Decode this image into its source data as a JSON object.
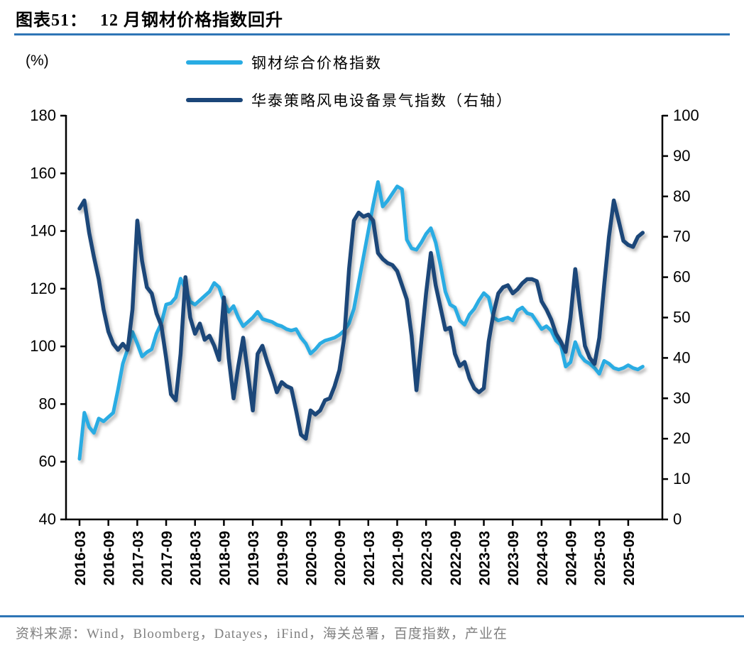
{
  "title": {
    "prefix": "图表51：",
    "text": "12 月钢材价格指数回升"
  },
  "unit_label": "(%)",
  "accent_line_color": "#2E75B6",
  "source": {
    "text": "资料来源：Wind，Bloomberg，Datayes，iFind，海关总署，百度指数，产业在",
    "color": "#808080"
  },
  "legend": {
    "position": "top",
    "items": [
      {
        "label": "钢材综合价格指数",
        "color": "#29ACE3"
      },
      {
        "label": "华泰策略风电设备景气指数（右轴）",
        "color": "#1B4679"
      }
    ]
  },
  "chart_data": {
    "type": "line",
    "title": "12 月钢材价格指数回升",
    "x_start": "2016-03",
    "x_frequency": "monthly",
    "x_tick_labels": [
      "2016-03",
      "2016-09",
      "2017-03",
      "2017-09",
      "2018-03",
      "2018-09",
      "2019-03",
      "2019-09",
      "2020-03",
      "2020-09",
      "2021-03",
      "2021-09",
      "2022-03",
      "2022-09",
      "2023-03",
      "2023-09",
      "2024-03",
      "2024-09",
      "2025-03",
      "2025-09"
    ],
    "ylim_left": [
      40,
      180
    ],
    "left_ticks": [
      180,
      160,
      140,
      120,
      100,
      80,
      60,
      40
    ],
    "ylim_right": [
      0,
      100
    ],
    "right_ticks": [
      100,
      90,
      80,
      70,
      60,
      50,
      40,
      30,
      20,
      10,
      0
    ],
    "grid": false,
    "axis_color": "#000000",
    "series": [
      {
        "name": "钢材综合价格指数",
        "axis": "left",
        "color": "#29ACE3",
        "line_width": 5,
        "values": [
          61,
          77,
          72,
          70,
          75,
          74,
          75.5,
          77,
          85,
          94,
          99,
          105,
          101,
          96.5,
          98,
          99,
          104.5,
          108,
          114.5,
          115,
          117,
          123.5,
          120,
          115.5,
          114.5,
          116,
          117.5,
          119,
          122,
          120.5,
          115.5,
          112,
          114,
          110,
          107,
          108.5,
          110,
          112,
          109.5,
          109,
          108.5,
          107.5,
          107,
          106,
          105.5,
          106,
          103,
          101,
          97.5,
          99,
          101,
          102,
          102.5,
          103,
          104,
          105.5,
          108,
          113,
          122,
          131,
          140,
          149,
          157,
          148.5,
          150.5,
          153,
          155.5,
          154.5,
          137,
          134,
          133.5,
          136,
          139,
          141,
          136,
          128,
          119,
          114.5,
          113.5,
          109,
          107.5,
          111,
          113,
          116,
          118.5,
          117,
          110,
          109,
          109.5,
          110,
          109,
          112.5,
          113.5,
          111.5,
          111,
          108.5,
          106,
          107,
          105.5,
          102,
          100.5,
          93,
          94.5,
          101.5,
          97,
          95,
          94,
          92.5,
          90.5,
          95,
          94,
          92.5,
          92,
          92.5,
          93.5,
          92.5,
          92,
          93
        ]
      },
      {
        "name": "华泰策略风电设备景气指数（右轴）",
        "axis": "right",
        "color": "#1B4679",
        "line_width": 5.5,
        "values": [
          77,
          79,
          71,
          65,
          59.5,
          52,
          46.5,
          43.5,
          42,
          43.5,
          42,
          52,
          74,
          64,
          57.5,
          56,
          51,
          48,
          40,
          31,
          29.5,
          41,
          60,
          50,
          46,
          48.5,
          44.5,
          45.5,
          43,
          39.5,
          55,
          40,
          30,
          38,
          45,
          36,
          27,
          41,
          43,
          39,
          35.5,
          31.5,
          34,
          33,
          32.5,
          27,
          21,
          20,
          27,
          26,
          27,
          29.5,
          30,
          33,
          37,
          45,
          62,
          74,
          76,
          75,
          75.5,
          74,
          66,
          64.5,
          63.5,
          63,
          61.5,
          58,
          54.5,
          45.5,
          32,
          44,
          56,
          66,
          58,
          52.5,
          47,
          47.5,
          41,
          38,
          39,
          35,
          32.5,
          31.5,
          32.5,
          44,
          51,
          56,
          57.5,
          58,
          56,
          57,
          58.5,
          59.5,
          59.5,
          59,
          54,
          52,
          49.5,
          46,
          44,
          41.5,
          50,
          62,
          52,
          43,
          40,
          38.5,
          45,
          58,
          70,
          79,
          74,
          69,
          68,
          67.5,
          70,
          71
        ]
      }
    ]
  }
}
